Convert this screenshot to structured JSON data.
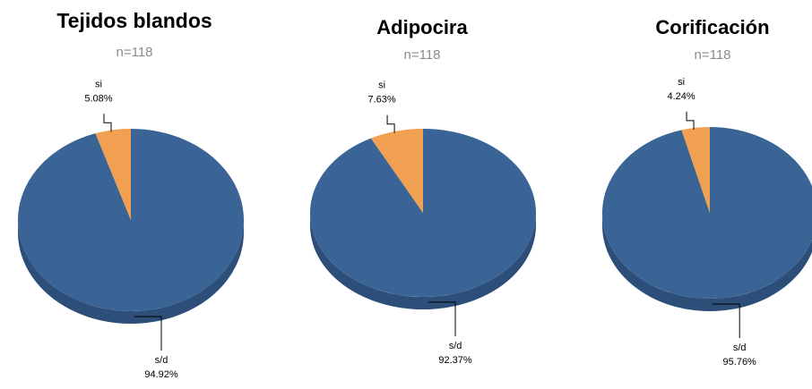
{
  "chart_data": [
    {
      "type": "pie",
      "title": "Tejidos blandos",
      "subtitle": "n=118",
      "slices": [
        {
          "label": "si",
          "value": 5.08,
          "value_label": "5.08%"
        },
        {
          "label": "s/d",
          "value": 94.92,
          "value_label": "94.92%"
        }
      ]
    },
    {
      "type": "pie",
      "title": "Adipocira",
      "subtitle": "n=118",
      "slices": [
        {
          "label": "si",
          "value": 7.63,
          "value_label": "7.63%"
        },
        {
          "label": "s/d",
          "value": 92.37,
          "value_label": "92.37%"
        }
      ]
    },
    {
      "type": "pie",
      "title": "Corificación",
      "subtitle": "n=118",
      "slices": [
        {
          "label": "si",
          "value": 4.24,
          "value_label": "4.24%"
        },
        {
          "label": "s/d",
          "value": 95.76,
          "value_label": "95.76%"
        }
      ]
    }
  ],
  "colors": {
    "si": "#F0A050",
    "sd": "#3A6496",
    "sd_side": "#2C4E78",
    "si_side": "#C07E3A",
    "subtitle": "#8C8C8C",
    "title": "#000000"
  }
}
